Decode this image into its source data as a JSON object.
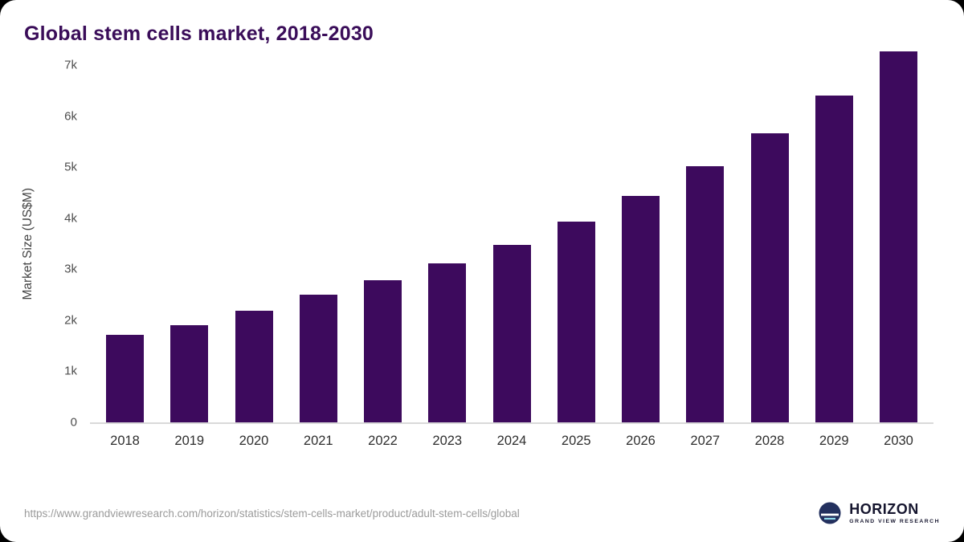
{
  "chart_data": {
    "type": "bar",
    "title": "Global stem cells market, 2018-2030",
    "categories": [
      "2018",
      "2019",
      "2020",
      "2021",
      "2022",
      "2023",
      "2024",
      "2025",
      "2026",
      "2027",
      "2028",
      "2029",
      "2030"
    ],
    "values": [
      1720,
      1900,
      2190,
      2500,
      2790,
      3110,
      3480,
      3930,
      4430,
      5020,
      5670,
      6410,
      7260
    ],
    "xlabel": "",
    "ylabel": "Market Size (US$M)",
    "ylim": [
      0,
      7000
    ],
    "yticks": [
      {
        "label": "0",
        "value": 0
      },
      {
        "label": "1k",
        "value": 1000
      },
      {
        "label": "2k",
        "value": 2000
      },
      {
        "label": "3k",
        "value": 3000
      },
      {
        "label": "4k",
        "value": 4000
      },
      {
        "label": "5k",
        "value": 5000
      },
      {
        "label": "6k",
        "value": 6000
      },
      {
        "label": "7k",
        "value": 7000
      }
    ],
    "grid": false,
    "legend": false,
    "bar_color": "#3d0a5d"
  },
  "footer": {
    "source_url": "https://www.grandviewresearch.com/horizon/statistics/stem-cells-market/product/adult-stem-cells/global",
    "brand_name": "HORIZON",
    "brand_tagline": "GRAND VIEW RESEARCH"
  }
}
